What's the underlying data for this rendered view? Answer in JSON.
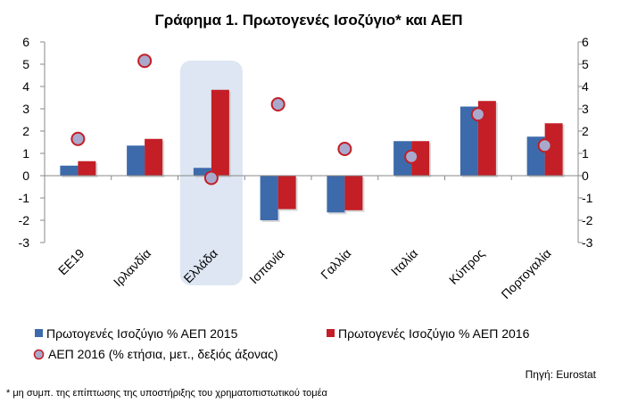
{
  "chart_data": {
    "type": "bar",
    "title": "Γράφημα 1. Πρωτογενές Ισοζύγιο* και ΑΕΠ",
    "categories": [
      "ΕΕ19",
      "Ιρλανδία",
      "Ελλάδα",
      "Ισπανία",
      "Γαλλία",
      "Ιταλία",
      "Κύπρος",
      "Πορτογαλία"
    ],
    "ylim": [
      -3,
      6
    ],
    "yticks": [
      "6",
      "5",
      "4",
      "3",
      "2",
      "1",
      "0",
      "-1",
      "-2",
      "-3"
    ],
    "y2lim": [
      -3,
      6
    ],
    "y2ticks": [
      "6",
      "5",
      "4",
      "3",
      "2",
      "1",
      "0",
      "-1",
      "-2",
      "-3"
    ],
    "highlight_category": "Ελλάδα",
    "series": [
      {
        "name": "Πρωτογενές Ισοζύγιο % ΑΕΠ 2015",
        "kind": "bar",
        "color": "#3d6aab",
        "values": [
          0.45,
          1.35,
          0.35,
          -2.0,
          -1.65,
          1.55,
          3.1,
          1.75
        ]
      },
      {
        "name": "Πρωτογενές Ισοζύγιο % ΑΕΠ 2016",
        "kind": "bar",
        "color": "#c41e26",
        "values": [
          0.65,
          1.65,
          3.85,
          -1.5,
          -1.55,
          1.55,
          3.35,
          2.35
        ]
      },
      {
        "name": "ΑΕΠ 2016 (% ετήσια, μετ., δεξιός άξονας)",
        "kind": "marker",
        "axis": "right",
        "color": "#a9a9cd",
        "edge": "#c41e26",
        "values": [
          1.65,
          5.15,
          -0.1,
          3.2,
          1.2,
          0.85,
          2.75,
          1.35
        ]
      }
    ],
    "source": "Πηγή:  Eurostat",
    "footnote": "* μη συμπ. της επίπτωσης της υποστήριξης του χρηματοπιστωτικού τομέα"
  }
}
